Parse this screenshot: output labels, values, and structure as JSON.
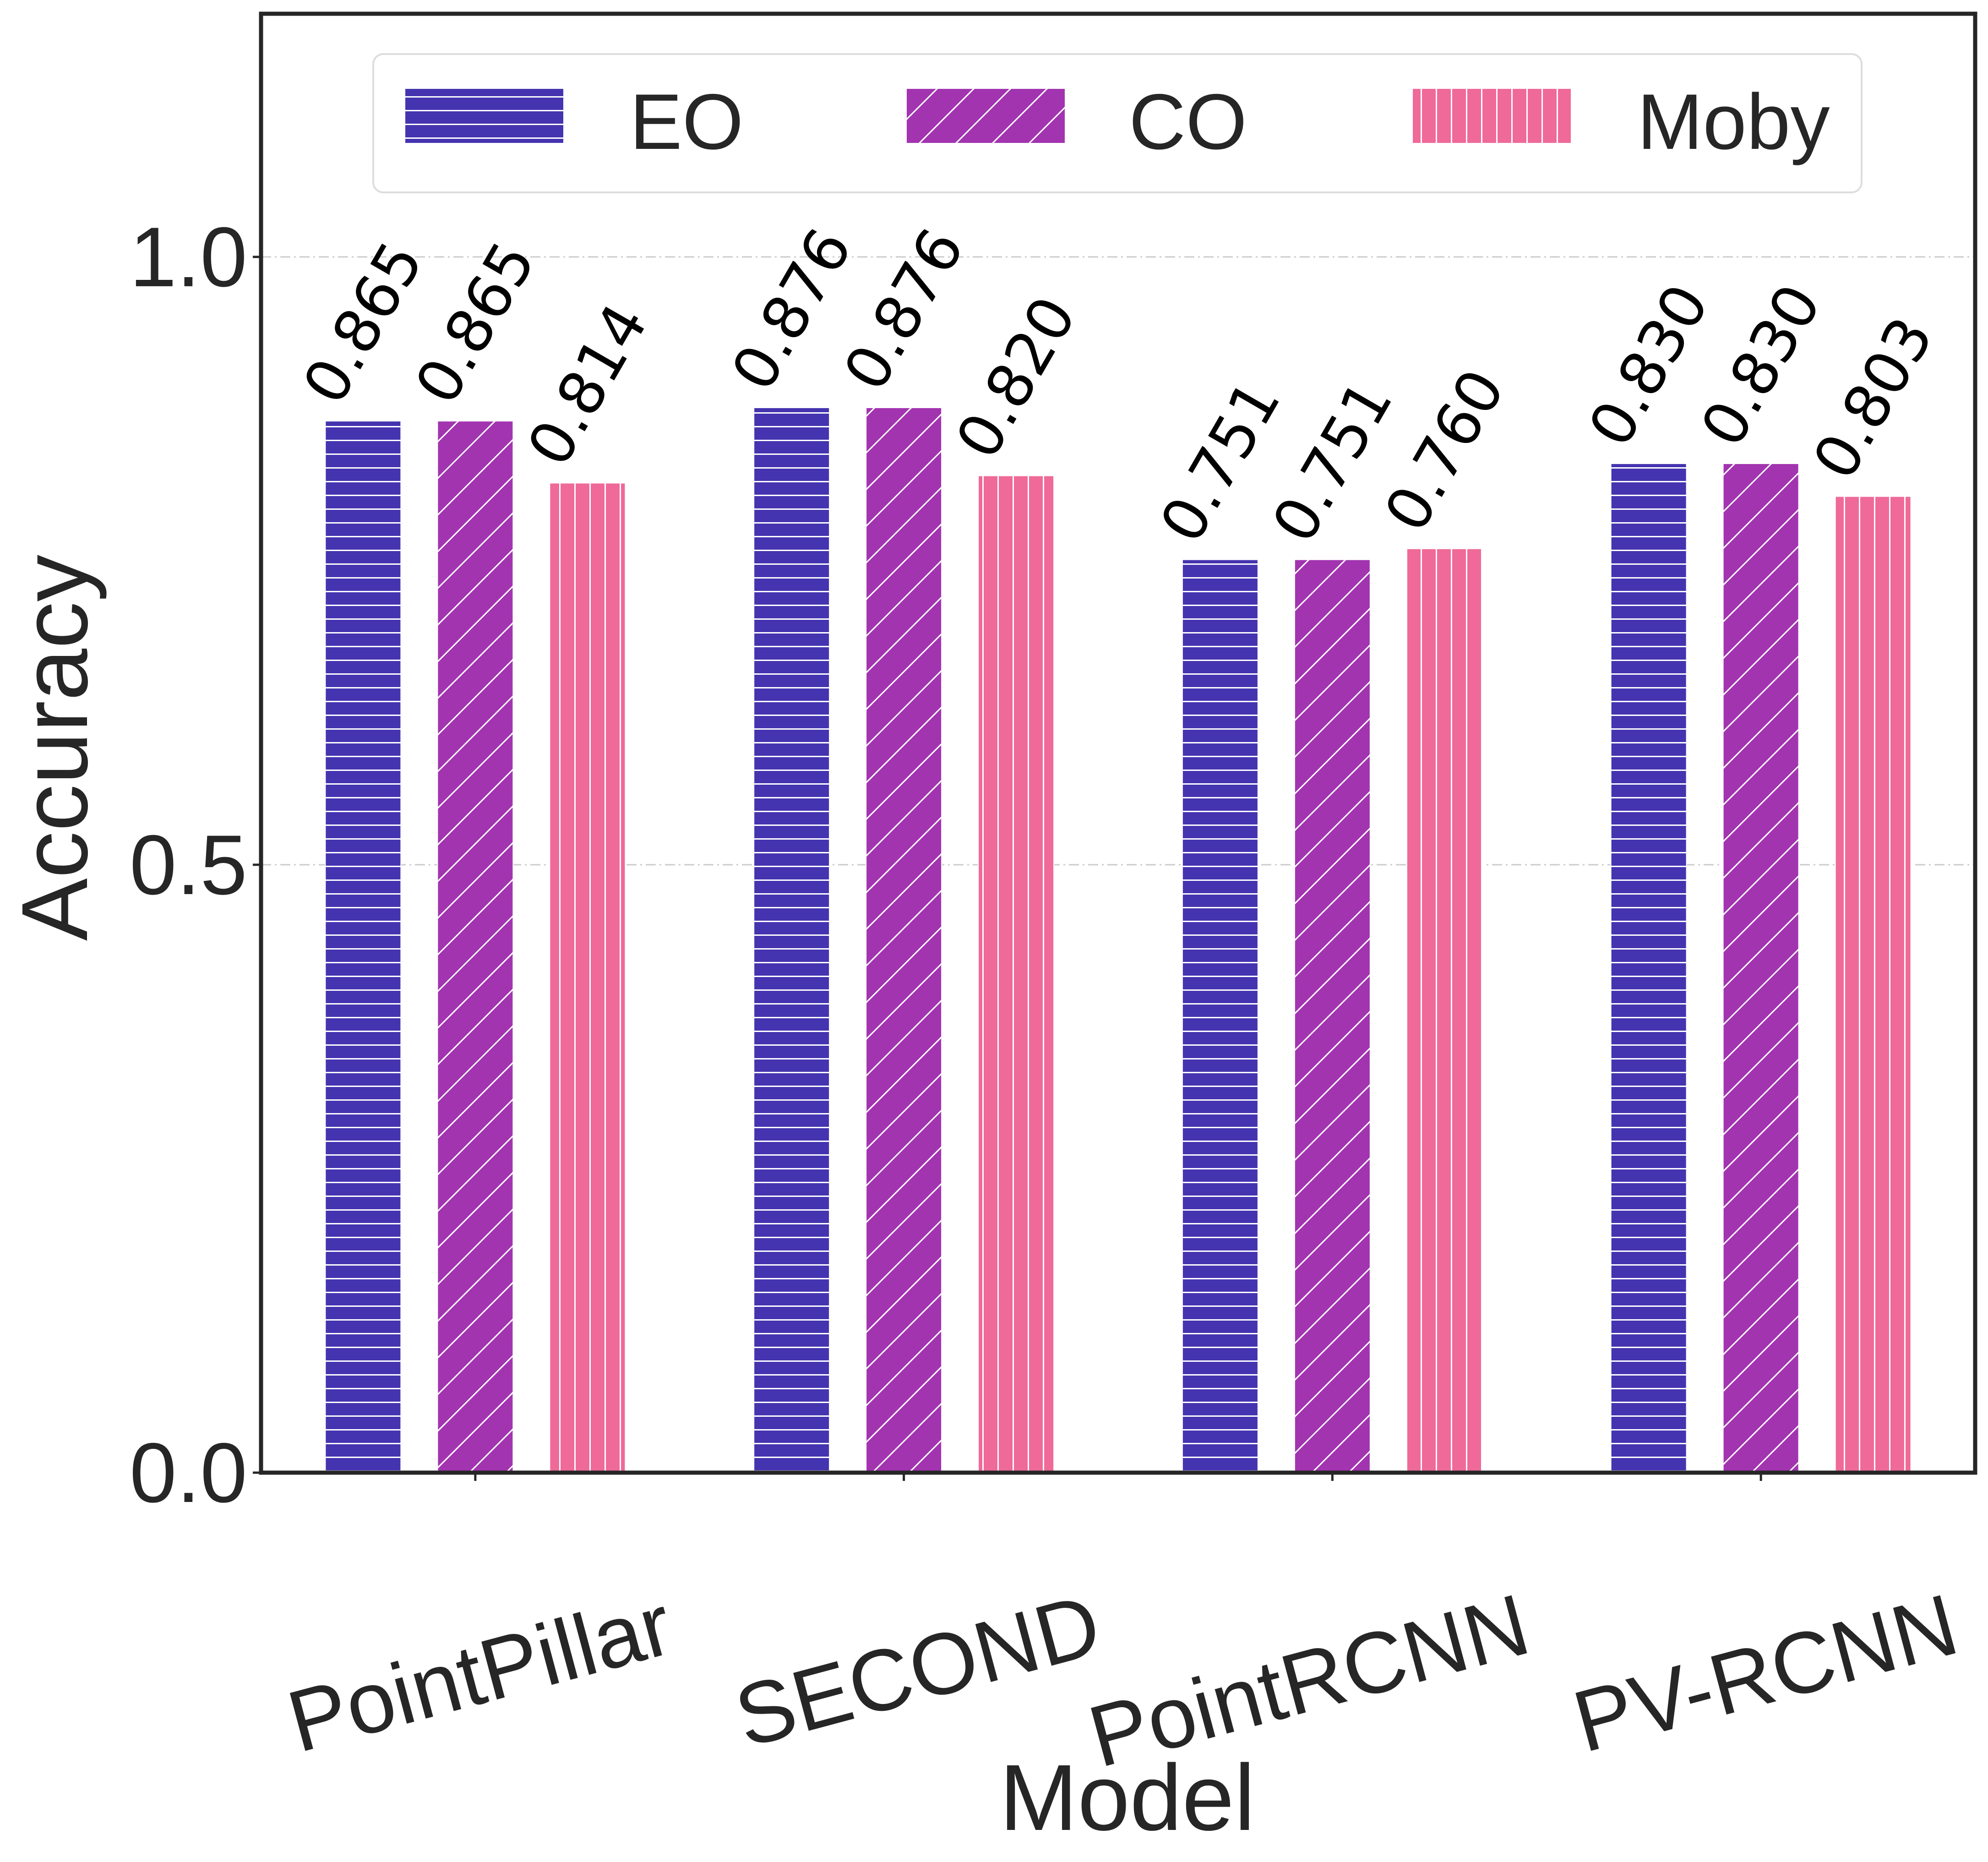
{
  "chart_data": {
    "type": "bar",
    "title": "",
    "xlabel": "Model",
    "ylabel": "Accuracy",
    "categories": [
      "PointPillar",
      "SECOND",
      "PointRCNN",
      "PV-RCNN"
    ],
    "series": [
      {
        "name": "EO",
        "values": [
          0.865,
          0.876,
          0.751,
          0.83
        ],
        "labels": [
          "0.865",
          "0.876",
          "0.751",
          "0.830"
        ],
        "color": "#4434b0",
        "hatch": "horizontal"
      },
      {
        "name": "CO",
        "values": [
          0.865,
          0.876,
          0.751,
          0.83
        ],
        "labels": [
          "0.865",
          "0.876",
          "0.751",
          "0.830"
        ],
        "color": "#a234b0",
        "hatch": "diagonal"
      },
      {
        "name": "Moby",
        "values": [
          0.814,
          0.82,
          0.76,
          0.803
        ],
        "labels": [
          "0.814",
          "0.820",
          "0.760",
          "0.803"
        ],
        "color": "#ef6a98",
        "hatch": "vertical"
      }
    ],
    "ylim": [
      0,
      1.2
    ],
    "yticks": [
      0.0,
      0.5,
      1.0
    ],
    "ytick_labels": [
      "0.0",
      "0.5",
      "1.0"
    ],
    "grid": true,
    "grid_axis": "y",
    "legend_position": "top",
    "colors": {
      "axis": "#262626",
      "grid": "#cccccc",
      "legend_border": "#dddddd"
    }
  }
}
